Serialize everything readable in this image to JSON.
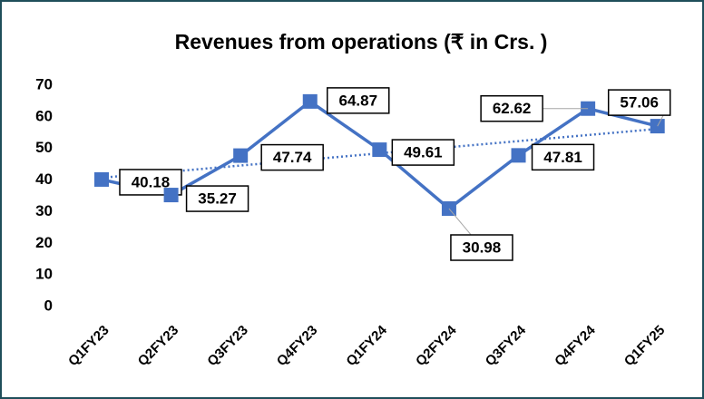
{
  "chart_data": {
    "type": "line",
    "title": "Revenues from operations (₹ in Crs. )",
    "categories": [
      "Q1FY23",
      "Q2FY23",
      "Q3FY23",
      "Q4FY23",
      "Q1FY24",
      "Q2FY24",
      "Q3FY24",
      "Q4FY24",
      "Q1FY25"
    ],
    "values": [
      40.18,
      35.27,
      47.74,
      64.87,
      49.61,
      30.98,
      47.81,
      62.62,
      57.06
    ],
    "color": "#4472c4",
    "trendline": "linear",
    "ylim": [
      0,
      70
    ],
    "yticks": [
      0,
      10,
      20,
      30,
      40,
      50,
      60,
      70
    ],
    "grid": false
  }
}
